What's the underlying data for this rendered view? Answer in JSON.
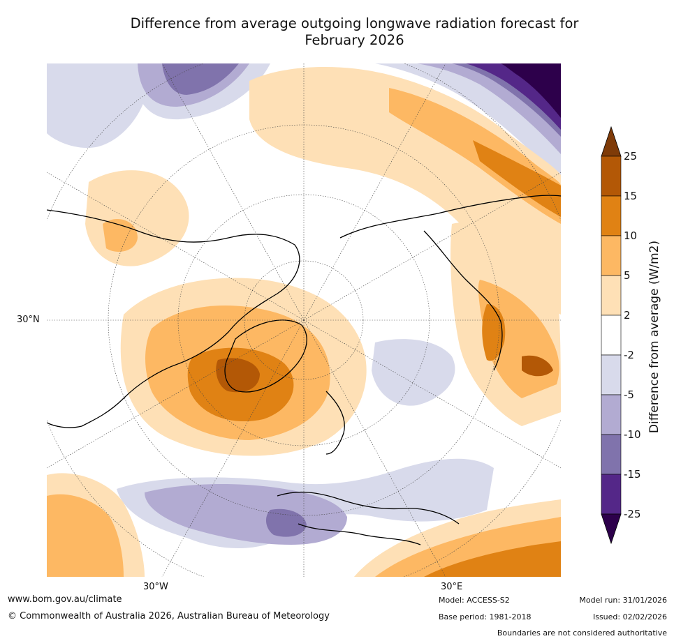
{
  "title": {
    "line1": "Difference from average outgoing longwave radiation forecast for",
    "line2": "February 2026"
  },
  "map": {
    "projection": "north-polar-stereographic",
    "tick_labels": {
      "lon_west": "30°W",
      "lon_east": "30°E",
      "lat": "30°N"
    }
  },
  "colorbar": {
    "title": "Difference from average (W/m2)",
    "levels": [
      "-25",
      "-15",
      "-10",
      "-5",
      "-2",
      "2",
      "5",
      "10",
      "15",
      "25"
    ],
    "colors": [
      "#2d004b",
      "#542788",
      "#8073ac",
      "#b2abd2",
      "#d8daeb",
      "#ffffff",
      "#fee0b6",
      "#fdb863",
      "#e08214",
      "#b35806",
      "#7f3b08"
    ]
  },
  "footer": {
    "website": "www.bom.gov.au/climate",
    "copyright": "© Commonwealth of Australia 2026, Australian Bureau of Meteorology",
    "model": "Model: ACCESS-S2",
    "base_period": "Base period: 1981-2018",
    "model_run": "Model run: 31/01/2026",
    "issued": "Issued: 02/02/2026",
    "disclaimer": "Boundaries are not considered authoritative"
  }
}
